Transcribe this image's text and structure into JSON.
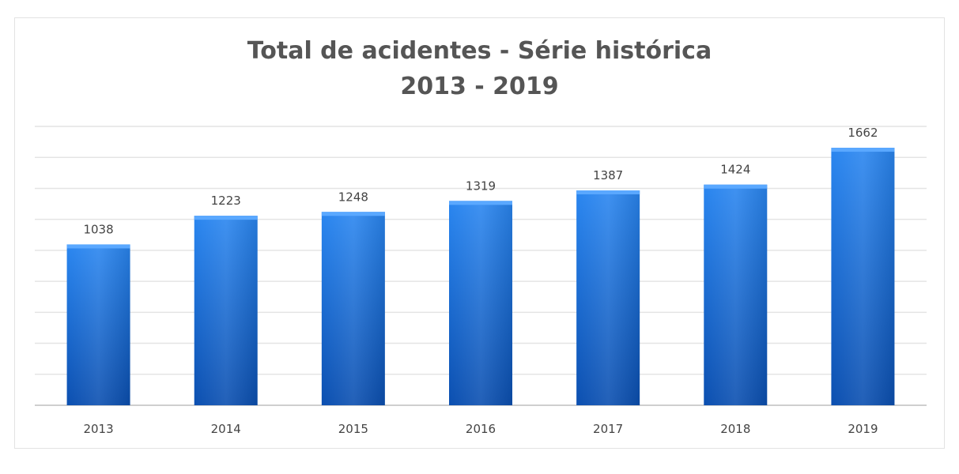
{
  "chart_data": {
    "type": "bar",
    "title": "Total de acidentes - Série histórica",
    "subtitle": "2013 - 2019",
    "categories": [
      "2013",
      "2014",
      "2015",
      "2016",
      "2017",
      "2018",
      "2019"
    ],
    "values": [
      1038,
      1223,
      1248,
      1319,
      1387,
      1424,
      1662
    ],
    "ylim": [
      0,
      1800
    ],
    "grid": true,
    "data_labels": true,
    "bar_color": "#1a6fd6",
    "bar_color_dark": "#0b4fb0"
  }
}
